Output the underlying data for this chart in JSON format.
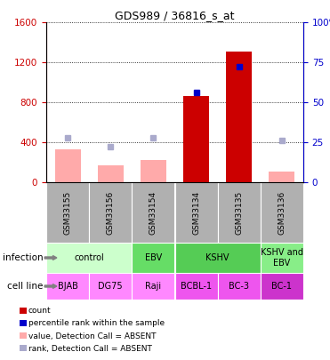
{
  "title": "GDS989 / 36816_s_at",
  "samples": [
    "GSM33155",
    "GSM33156",
    "GSM33154",
    "GSM33134",
    "GSM33135",
    "GSM33136"
  ],
  "bar_values": [
    null,
    null,
    null,
    860,
    1310,
    null
  ],
  "bar_absent_values": [
    330,
    170,
    220,
    null,
    null,
    110
  ],
  "rank_values": [
    null,
    null,
    null,
    56,
    72,
    null
  ],
  "rank_absent_values": [
    28,
    22,
    28,
    null,
    null,
    26
  ],
  "ylim_left": [
    0,
    1600
  ],
  "ylim_right": [
    0,
    100
  ],
  "yticks_left": [
    0,
    400,
    800,
    1200,
    1600
  ],
  "yticks_right": [
    0,
    25,
    50,
    75,
    100
  ],
  "bar_color": "#cc0000",
  "bar_absent_color": "#ffaaaa",
  "rank_color": "#0000cc",
  "rank_absent_color": "#aaaacc",
  "infection_groups": [
    {
      "label": "control",
      "span": [
        0,
        2
      ],
      "color": "#ccffcc"
    },
    {
      "label": "EBV",
      "span": [
        2,
        3
      ],
      "color": "#66dd66"
    },
    {
      "label": "KSHV",
      "span": [
        3,
        5
      ],
      "color": "#55cc55"
    },
    {
      "label": "KSHV and\nEBV",
      "span": [
        5,
        6
      ],
      "color": "#88ee88"
    }
  ],
  "cell_lines": [
    {
      "label": "BJAB",
      "span": [
        0,
        1
      ],
      "color": "#ff88ff"
    },
    {
      "label": "DG75",
      "span": [
        1,
        2
      ],
      "color": "#ff88ff"
    },
    {
      "label": "Raji",
      "span": [
        2,
        3
      ],
      "color": "#ff88ff"
    },
    {
      "label": "BCBL-1",
      "span": [
        3,
        4
      ],
      "color": "#ee55ee"
    },
    {
      "label": "BC-3",
      "span": [
        4,
        5
      ],
      "color": "#ee55ee"
    },
    {
      "label": "BC-1",
      "span": [
        5,
        6
      ],
      "color": "#cc33cc"
    }
  ],
  "legend_items": [
    {
      "label": "count",
      "color": "#cc0000"
    },
    {
      "label": "percentile rank within the sample",
      "color": "#0000cc"
    },
    {
      "label": "value, Detection Call = ABSENT",
      "color": "#ffaaaa"
    },
    {
      "label": "rank, Detection Call = ABSENT",
      "color": "#aaaacc"
    }
  ],
  "infection_label": "infection",
  "cell_line_label": "cell line",
  "sample_box_color": "#b0b0b0"
}
